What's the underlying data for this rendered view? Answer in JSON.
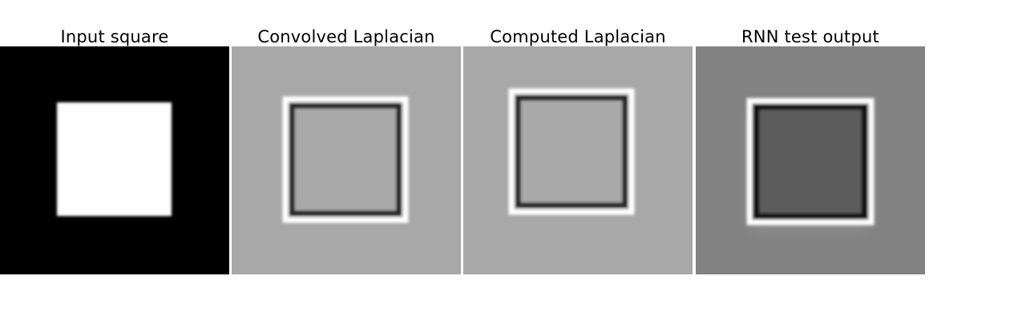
{
  "panels": [
    {
      "title": "Input square",
      "background": "#000000",
      "interior": "#ffffff"
    },
    {
      "title": "Convolved Laplacian",
      "background": "#a8a8a8",
      "interior": "#a8a8a8"
    },
    {
      "title": "Computed Laplacian",
      "background": "#a8a8a8",
      "interior": "#a8a8a8"
    },
    {
      "title": "RNN test output",
      "background": "#828282",
      "interior": "#5c5c5c"
    }
  ]
}
